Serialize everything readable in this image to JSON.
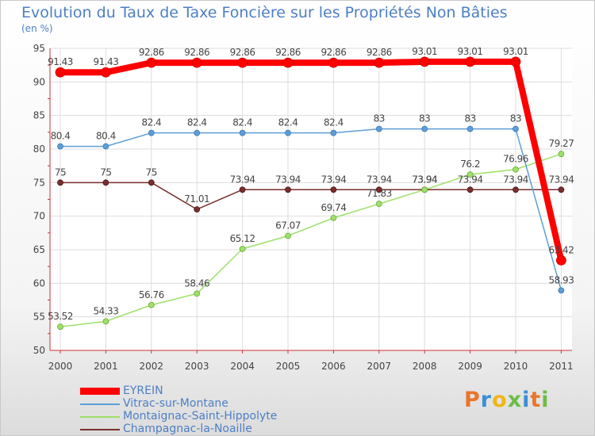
{
  "chart_data": {
    "type": "line",
    "title": "Evolution du Taux de Taxe Foncière sur les Propriétés Non Bâties",
    "ylabel": "(en %)",
    "xlabel": "",
    "ylim": [
      50,
      95
    ],
    "yticks": [
      "50",
      "55",
      "60",
      "65",
      "70",
      "75",
      "80",
      "85",
      "90",
      "95"
    ],
    "categories": [
      "2000",
      "2001",
      "2002",
      "2003",
      "2004",
      "2005",
      "2006",
      "2007",
      "2008",
      "2009",
      "2010",
      "2011"
    ],
    "series": [
      {
        "name": "EYREIN",
        "color": "#ff0000",
        "values": [
          91.43,
          91.43,
          92.86,
          92.86,
          92.86,
          92.86,
          92.86,
          92.86,
          93.01,
          93.01,
          93.01,
          63.42
        ],
        "labels": [
          "91.43",
          "91.43",
          "92.86",
          "92.86",
          "92.86",
          "92.86",
          "92.86",
          "92.86",
          "93.01",
          "93.01",
          "93.01",
          "63.42"
        ]
      },
      {
        "name": "Vitrac-sur-Montane",
        "color": "#5d9ed8",
        "values": [
          80.4,
          80.4,
          82.4,
          82.4,
          82.4,
          82.4,
          82.4,
          83,
          83,
          83,
          83,
          58.93
        ],
        "labels": [
          "80.4",
          "80.4",
          "82.4",
          "82.4",
          "82.4",
          "82.4",
          "82.4",
          "83",
          "83",
          "83",
          "83",
          "58.93"
        ]
      },
      {
        "name": "Montaignac-Saint-Hippolyte",
        "color": "#9ee06a",
        "values": [
          53.52,
          54.33,
          56.76,
          58.46,
          65.12,
          67.07,
          69.74,
          71.83,
          73.94,
          76.2,
          76.96,
          79.27
        ],
        "labels": [
          "53.52",
          "54.33",
          "56.76",
          "58.46",
          "65.12",
          "67.07",
          "69.74",
          "71.83",
          "73.94",
          "76.2",
          "76.96",
          "79.27"
        ]
      },
      {
        "name": "Champagnac-la-Noaille",
        "color": "#7a2e2e",
        "values": [
          75,
          75,
          75,
          71.01,
          73.94,
          73.94,
          73.94,
          73.94,
          73.94,
          73.94,
          73.94,
          73.94
        ],
        "labels": [
          "75",
          "75",
          "75",
          "71.01",
          "73.94",
          "73.94",
          "73.94",
          "73.94",
          "73.94",
          "73.94",
          "73.94",
          "73.94"
        ]
      }
    ],
    "legend_position": "bottom-left",
    "grid": true
  },
  "logo": {
    "letters": [
      "P",
      "r",
      "o",
      "x",
      "i",
      "t",
      "i"
    ],
    "colors": [
      "#e8762c",
      "#3b8fd6",
      "#f0b616",
      "#6cbd45",
      "#3b8fd6",
      "#e8762c",
      "#6cbd45"
    ]
  }
}
